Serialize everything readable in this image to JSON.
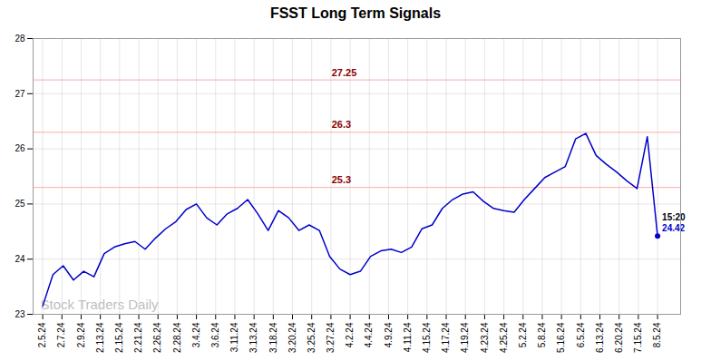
{
  "chart_data": {
    "type": "line",
    "title": "FSST Long Term Signals",
    "x": [
      0,
      0.5333333333333333,
      1.0666666666666667,
      1.6,
      2.1333333333333333,
      2.6666666666666665,
      3.2,
      3.7333333333333334,
      4.266666666666667,
      4.8,
      5.333333333333333,
      5.866666666666666,
      6.4,
      6.933333333333334,
      7.466666666666667,
      8,
      8.533333333333333,
      9.066666666666666,
      9.6,
      10.133333333333333,
      10.666666666666666,
      11.2,
      11.733333333333333,
      12.266666666666667,
      12.8,
      13.333333333333334,
      13.866666666666667,
      14.4,
      14.933333333333334,
      15.466666666666667,
      16,
      16.533333333333335,
      17.066666666666666,
      17.6,
      18.133333333333333,
      18.666666666666668,
      19.2,
      19.733333333333334,
      20.266666666666666,
      20.8,
      21.333333333333332,
      21.866666666666667,
      22.4,
      22.933333333333334,
      23.466666666666665,
      24,
      24.533333333333335,
      25.066666666666666,
      25.6,
      26.133333333333333,
      26.666666666666668,
      27.2,
      27.733333333333334,
      28.266666666666666,
      28.8,
      29.333333333333332,
      29.866666666666667,
      30.4,
      30.933333333333334,
      31.466666666666665,
      32
    ],
    "values": [
      23.15,
      23.72,
      23.88,
      23.62,
      23.78,
      23.68,
      24.1,
      24.22,
      24.28,
      24.32,
      24.18,
      24.38,
      24.55,
      24.68,
      24.9,
      25.0,
      24.75,
      24.62,
      24.82,
      24.92,
      25.08,
      24.82,
      24.52,
      24.88,
      24.75,
      24.52,
      24.62,
      24.52,
      24.05,
      23.82,
      23.72,
      23.78,
      24.05,
      24.15,
      24.18,
      24.12,
      24.22,
      24.55,
      24.62,
      24.92,
      25.08,
      25.18,
      25.22,
      25.05,
      24.92,
      24.88,
      24.85,
      25.08,
      25.28,
      25.48,
      25.58,
      25.68,
      26.18,
      26.28,
      25.88,
      25.72,
      25.58,
      25.42,
      25.28,
      26.22,
      24.42
    ],
    "color": "#0000cc",
    "xlim": [
      -0.5,
      33.2
    ],
    "xticks": [
      {
        "value": 0,
        "label": "2.5.24"
      },
      {
        "value": 1,
        "label": "2.7.24"
      },
      {
        "value": 2,
        "label": "2.9.24"
      },
      {
        "value": 3,
        "label": "2.13.24"
      },
      {
        "value": 4,
        "label": "2.15.24"
      },
      {
        "value": 5,
        "label": "2.21.24"
      },
      {
        "value": 6,
        "label": "2.26.24"
      },
      {
        "value": 7,
        "label": "2.28.24"
      },
      {
        "value": 8,
        "label": "3.4.24"
      },
      {
        "value": 9,
        "label": "3.6.24"
      },
      {
        "value": 10,
        "label": "3.11.24"
      },
      {
        "value": 11,
        "label": "3.13.24"
      },
      {
        "value": 12,
        "label": "3.18.24"
      },
      {
        "value": 13,
        "label": "3.20.24"
      },
      {
        "value": 14,
        "label": "3.25.24"
      },
      {
        "value": 15,
        "label": "3.27.24"
      },
      {
        "value": 16,
        "label": "4.2.24"
      },
      {
        "value": 17,
        "label": "4.4.24"
      },
      {
        "value": 18,
        "label": "4.9.24"
      },
      {
        "value": 19,
        "label": "4.11.24"
      },
      {
        "value": 20,
        "label": "4.15.24"
      },
      {
        "value": 21,
        "label": "4.17.24"
      },
      {
        "value": 22,
        "label": "4.19.24"
      },
      {
        "value": 23,
        "label": "4.23.24"
      },
      {
        "value": 24,
        "label": "4.25.24"
      },
      {
        "value": 25,
        "label": "5.2.24"
      },
      {
        "value": 26,
        "label": "5.8.24"
      },
      {
        "value": 27,
        "label": "5.16.24"
      },
      {
        "value": 28,
        "label": "6.5.24"
      },
      {
        "value": 29,
        "label": "6.13.24"
      },
      {
        "value": 30,
        "label": "6.20.24"
      },
      {
        "value": 31,
        "label": "7.15.24"
      },
      {
        "value": 32,
        "label": "8.5.24"
      }
    ],
    "ylim": [
      23.0,
      28.0
    ],
    "yticks": [
      23,
      24,
      25,
      26,
      27,
      28
    ],
    "grid": true,
    "hlines": [
      {
        "y": 27.25,
        "label": "27.25",
        "color": "#8b0000",
        "line_color": "#ffaaaa"
      },
      {
        "y": 26.3,
        "label": "26.3",
        "color": "#8b0000",
        "line_color": "#ffaaaa"
      },
      {
        "y": 25.3,
        "label": "25.3",
        "color": "#8b0000",
        "line_color": "#ffaaaa"
      }
    ],
    "annotations": [
      {
        "text": "15:20",
        "color": "#000000"
      },
      {
        "text": "24.42",
        "color": "#0000cc"
      }
    ],
    "watermark": {
      "text": "Stock Traders Daily",
      "color": "#c0c0c0"
    }
  }
}
